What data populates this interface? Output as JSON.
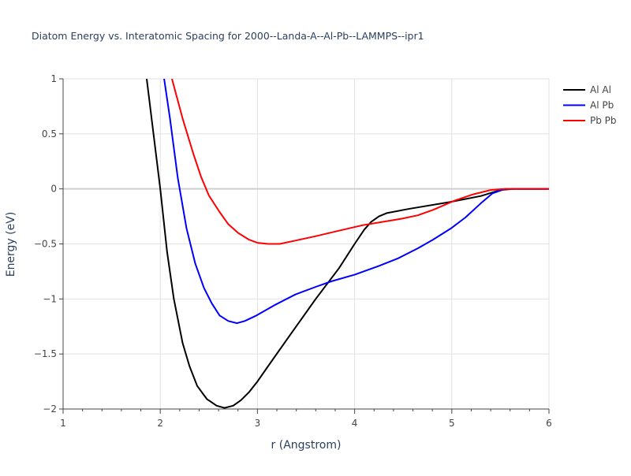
{
  "chart_data": {
    "type": "line",
    "title": "Diatom Energy vs. Interatomic Spacing for 2000--Landa-A--Al-Pb--LAMMPS--ipr1",
    "xlabel": "r (Angstrom)",
    "ylabel": "Energy (eV)",
    "xlim": [
      1,
      6
    ],
    "ylim": [
      -2,
      1
    ],
    "xticks": [
      {
        "v": 1,
        "label": "1"
      },
      {
        "v": 2,
        "label": "2"
      },
      {
        "v": 3,
        "label": "3"
      },
      {
        "v": 4,
        "label": "4"
      },
      {
        "v": 5,
        "label": "5"
      },
      {
        "v": 6,
        "label": "6"
      }
    ],
    "yticks": [
      {
        "v": 1,
        "label": "1"
      },
      {
        "v": 0.5,
        "label": "0.5"
      },
      {
        "v": 0,
        "label": "0"
      },
      {
        "v": -0.5,
        "label": "−0.5"
      },
      {
        "v": -1,
        "label": "−1"
      },
      {
        "v": -1.5,
        "label": "−1.5"
      },
      {
        "v": -2,
        "label": "−2"
      }
    ],
    "grid": true,
    "legend_position": "top-right",
    "series": [
      {
        "name": "Al Al",
        "color": "#000000",
        "x": [
          1.86,
          2.0,
          2.07,
          2.14,
          2.23,
          2.3,
          2.38,
          2.48,
          2.58,
          2.66,
          2.75,
          2.83,
          2.91,
          3.0,
          3.11,
          3.31,
          3.6,
          3.84,
          4.0,
          4.1,
          4.17,
          4.25,
          4.33,
          4.57,
          4.98,
          5.3,
          5.5,
          5.63,
          6.0
        ],
        "y": [
          1.0,
          0.0,
          -0.57,
          -1.0,
          -1.4,
          -1.61,
          -1.79,
          -1.91,
          -1.97,
          -1.99,
          -1.97,
          -1.92,
          -1.85,
          -1.75,
          -1.61,
          -1.36,
          -1.0,
          -0.72,
          -0.5,
          -0.37,
          -0.3,
          -0.25,
          -0.22,
          -0.18,
          -0.12,
          -0.065,
          -0.01,
          0,
          0
        ]
      },
      {
        "name": "Al Pb",
        "color": "#0000ff",
        "x": [
          2.04,
          2.1,
          2.18,
          2.27,
          2.36,
          2.45,
          2.53,
          2.61,
          2.7,
          2.79,
          2.87,
          2.99,
          3.19,
          3.39,
          3.6,
          3.76,
          4.0,
          4.25,
          4.45,
          4.65,
          4.81,
          4.99,
          5.14,
          5.3,
          5.42,
          5.55,
          6.0
        ],
        "y": [
          1.0,
          0.64,
          0.1,
          -0.36,
          -0.68,
          -0.9,
          -1.04,
          -1.15,
          -1.2,
          -1.22,
          -1.2,
          -1.15,
          -1.05,
          -0.96,
          -0.89,
          -0.84,
          -0.78,
          -0.7,
          -0.63,
          -0.54,
          -0.46,
          -0.36,
          -0.26,
          -0.13,
          -0.04,
          0,
          0
        ]
      },
      {
        "name": "Pb Pb",
        "color": "#ff0000",
        "x": [
          2.12,
          2.23,
          2.34,
          2.42,
          2.5,
          2.61,
          2.7,
          2.8,
          2.91,
          3.0,
          3.11,
          3.23,
          3.39,
          3.6,
          3.84,
          4.08,
          4.49,
          4.65,
          4.81,
          5.02,
          5.22,
          5.4,
          5.55,
          6.0
        ],
        "y": [
          1.0,
          0.64,
          0.32,
          0.11,
          -0.06,
          -0.21,
          -0.32,
          -0.4,
          -0.46,
          -0.49,
          -0.5,
          -0.5,
          -0.47,
          -0.43,
          -0.38,
          -0.33,
          -0.27,
          -0.24,
          -0.19,
          -0.11,
          -0.05,
          -0.01,
          0,
          0
        ]
      }
    ]
  }
}
